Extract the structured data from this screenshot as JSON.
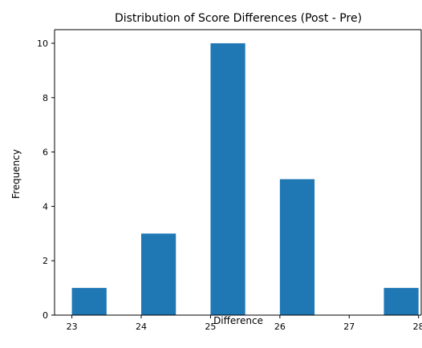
{
  "chart_data": {
    "type": "bar",
    "title": "Distribution of Score Differences (Post - Pre)",
    "xlabel": "Difference",
    "ylabel": "Frequency",
    "bar_color": "#1f77b4",
    "xlim": [
      22.75,
      28.05
    ],
    "ylim": [
      0,
      10.5
    ],
    "xticks": [
      "23",
      "24",
      "25",
      "26",
      "27",
      "28"
    ],
    "xtick_values": [
      23,
      24,
      25,
      26,
      27,
      28
    ],
    "yticks": [
      "0",
      "2",
      "4",
      "6",
      "8",
      "10"
    ],
    "ytick_values": [
      0,
      2,
      4,
      6,
      8,
      10
    ],
    "grid": false,
    "bins": [
      {
        "start": 23.0,
        "end": 23.5,
        "value": 1
      },
      {
        "start": 23.5,
        "end": 24.0,
        "value": 0
      },
      {
        "start": 24.0,
        "end": 24.5,
        "value": 3
      },
      {
        "start": 24.5,
        "end": 25.0,
        "value": 0
      },
      {
        "start": 25.0,
        "end": 25.5,
        "value": 10
      },
      {
        "start": 25.5,
        "end": 26.0,
        "value": 0
      },
      {
        "start": 26.0,
        "end": 26.5,
        "value": 5
      },
      {
        "start": 26.5,
        "end": 27.0,
        "value": 0
      },
      {
        "start": 27.0,
        "end": 27.5,
        "value": 0
      },
      {
        "start": 27.5,
        "end": 28.0,
        "value": 1
      }
    ]
  }
}
